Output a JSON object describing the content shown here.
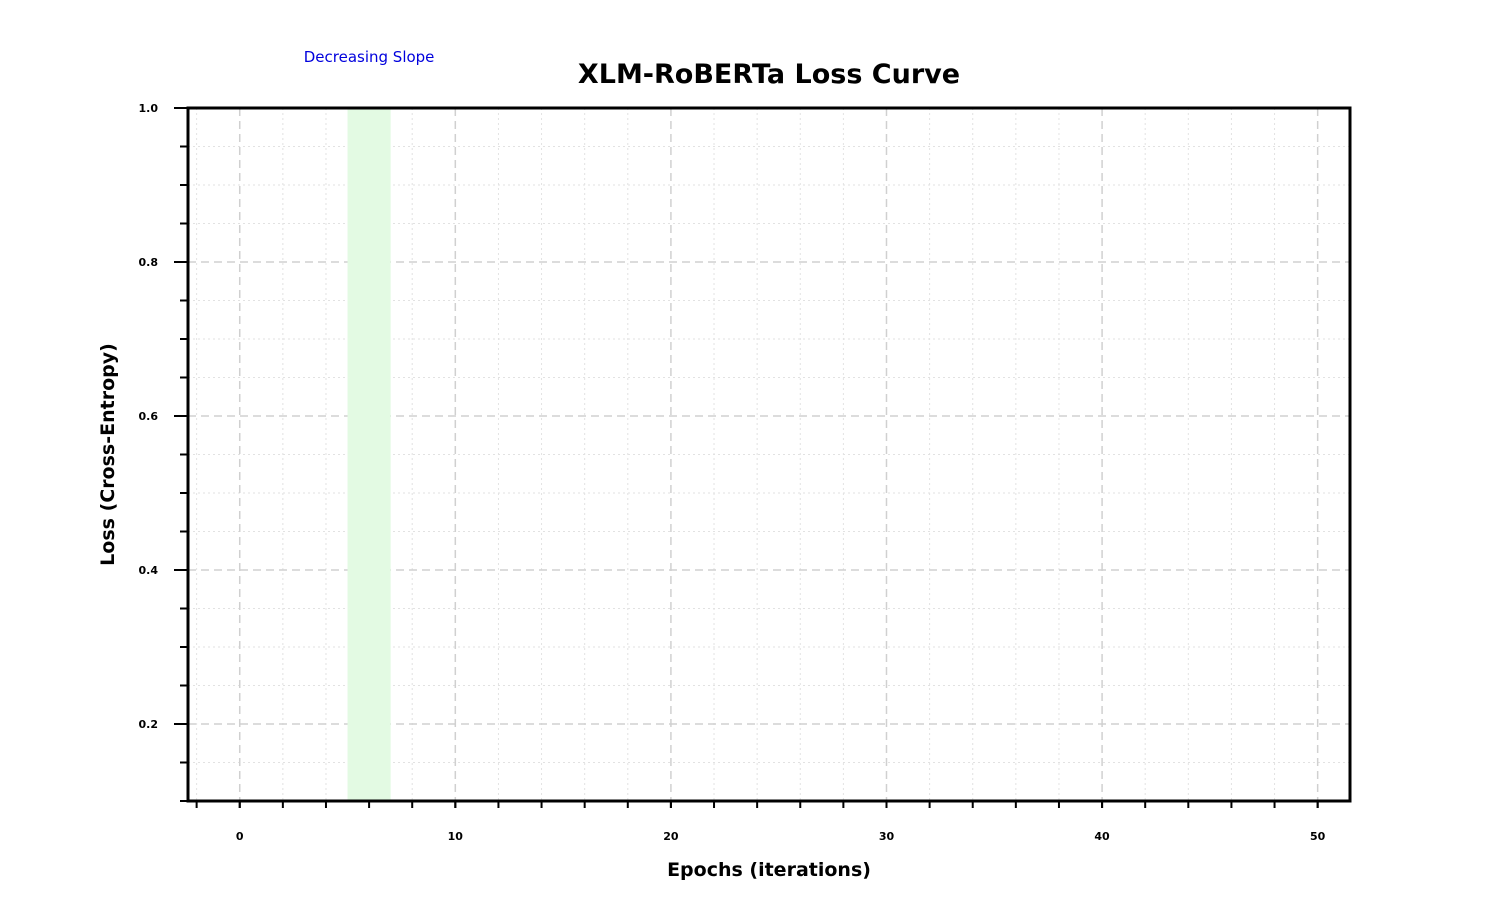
{
  "chart_data": {
    "type": "line",
    "title": "XLM-RoBERTa Loss Curve",
    "xlabel": "Epochs (iterations)",
    "ylabel": "Loss (Cross-Entropy)",
    "xlim": [
      -2.4,
      51.5
    ],
    "ylim": [
      0.1,
      1.0
    ],
    "x_ticks": [
      0,
      10,
      20,
      30,
      40,
      50
    ],
    "x_tick_labels": [
      "0",
      "10",
      "20",
      "30",
      "40",
      "50"
    ],
    "x_minor_step": 2,
    "y_ticks": [
      0.2,
      0.4,
      0.6,
      0.8,
      1.0
    ],
    "y_tick_labels": [
      "0.2",
      "0.4",
      "0.6",
      "0.8",
      "1.0"
    ],
    "y_minor_step": 0.05,
    "grid": true,
    "series": [],
    "highlight_span": {
      "x_start": 5,
      "x_end": 7,
      "color": "#e3fae3"
    },
    "annotation": {
      "text": "Decreasing Slope",
      "x": 6,
      "color": "#0000dd"
    }
  }
}
